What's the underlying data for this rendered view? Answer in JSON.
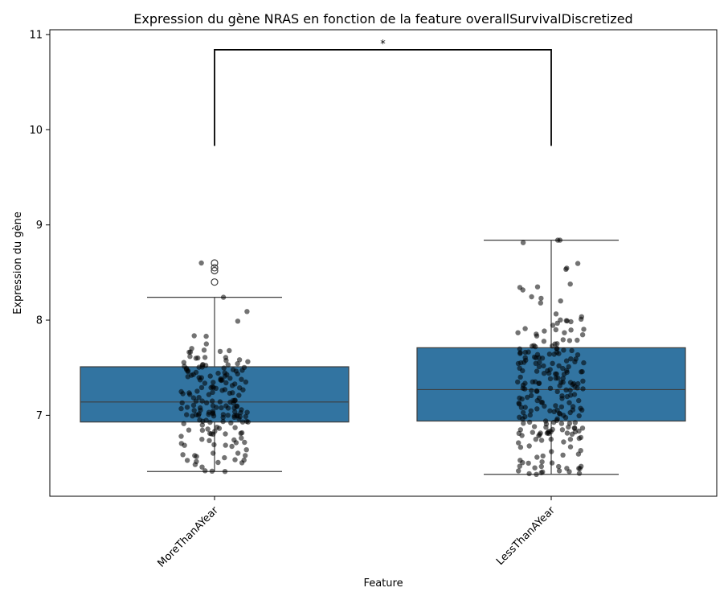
{
  "chart_data": {
    "type": "box",
    "title": "Expression du gène NRAS en fonction de la feature overallSurvivalDiscretized",
    "xlabel": "Feature",
    "ylabel": "Expression du gène",
    "categories": [
      "MoreThanAYear",
      "LessThanAYear"
    ],
    "ylim": [
      6.15,
      11.05
    ],
    "yticks": [
      "7",
      "8",
      "9",
      "10",
      "11"
    ],
    "box_color": "#3274a1",
    "point_color": "#000000",
    "boxes": [
      {
        "name": "MoreThanAYear",
        "q1": 6.93,
        "median": 7.14,
        "q3": 7.51,
        "whisker_low": 6.41,
        "whisker_high": 8.24,
        "outliers": [
          8.4,
          8.52,
          8.55,
          8.6
        ],
        "n_points": 190,
        "spread_low": 6.41,
        "spread_high": 8.6
      },
      {
        "name": "LessThanAYear",
        "q1": 6.94,
        "median": 7.27,
        "q3": 7.71,
        "whisker_low": 6.38,
        "whisker_high": 8.84,
        "outliers": [],
        "n_points": 240,
        "spread_low": 6.38,
        "spread_high": 8.84
      }
    ],
    "annotation": {
      "label": "*",
      "between": [
        "MoreThanAYear",
        "LessThanAYear"
      ],
      "y_low": 9.83,
      "y_high": 10.84
    }
  }
}
